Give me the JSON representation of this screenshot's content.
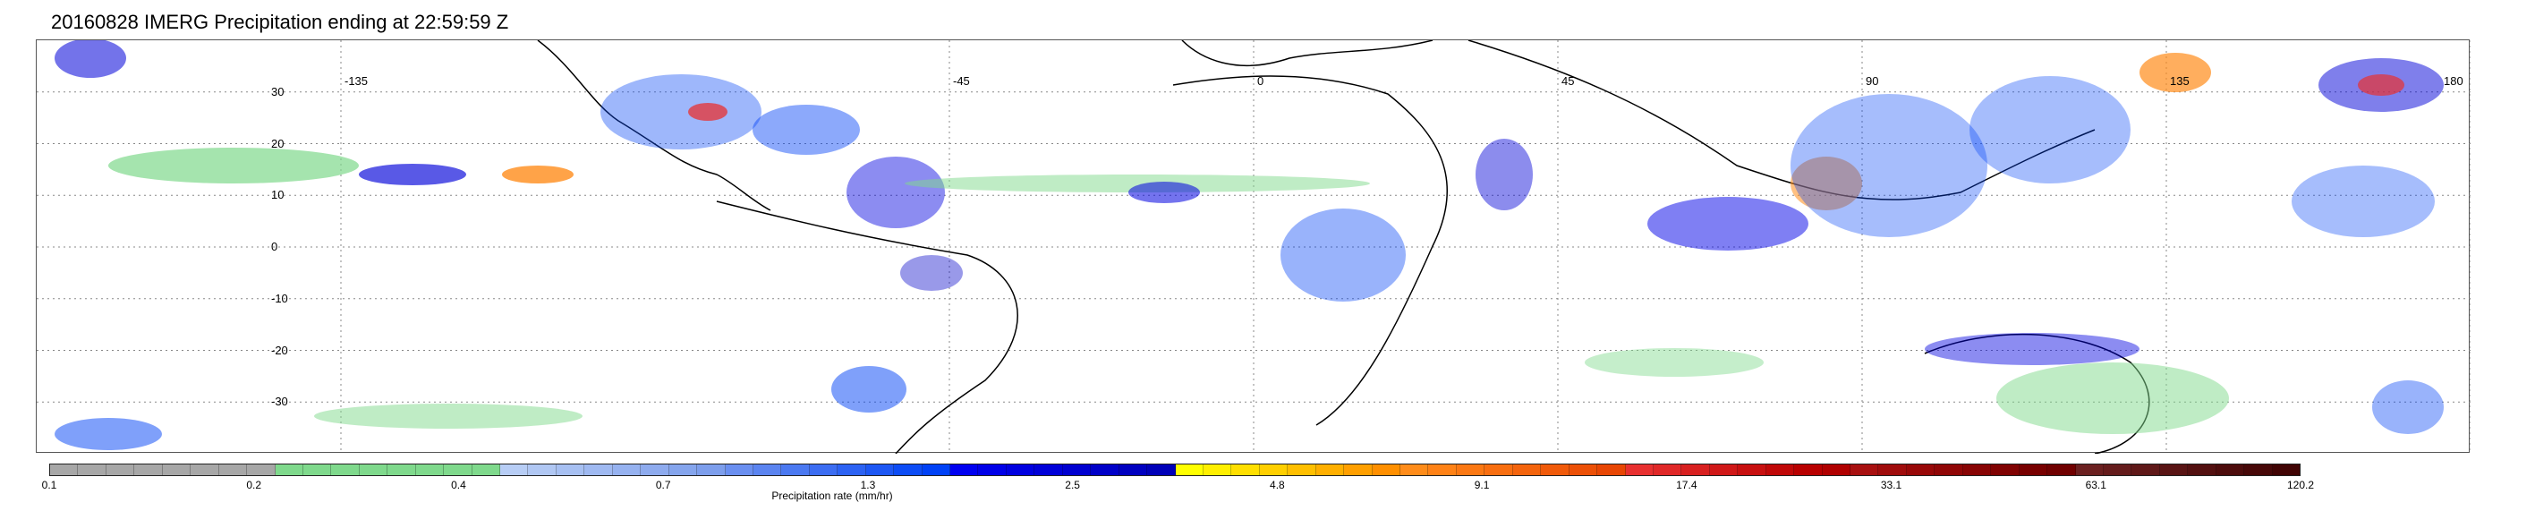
{
  "title": "20160828 IMERG Precipitation ending at 22:59:59 Z",
  "map": {
    "lon_labels": [
      "-135",
      "-45",
      "0",
      "45",
      "90",
      "135",
      "180"
    ],
    "lat_labels": [
      "30",
      "20",
      "10",
      "0",
      "-10",
      "-20",
      "-30"
    ],
    "grid": true,
    "gridline_style": "dotted"
  },
  "colorbar": {
    "label": "Precipitation rate (mm/hr)",
    "ticks": [
      "0.1",
      "0.2",
      "0.4",
      "0.7",
      "1.3",
      "2.5",
      "4.8",
      "9.1",
      "17.4",
      "33.1",
      "63.1",
      "120.2"
    ],
    "colors": [
      "#a7a7a7",
      "#a7a7a7",
      "#a7a7a7",
      "#a7a7a7",
      "#a7a7a7",
      "#a7a7a7",
      "#a7a7a7",
      "#a7a7a7",
      "#7fd98c",
      "#7fd98c",
      "#7fd98c",
      "#7fd98c",
      "#7fd98c",
      "#7fd98c",
      "#7fd98c",
      "#7fd98c",
      "#b7cdf5",
      "#b0c7f3",
      "#a7c0f2",
      "#9fb9f1",
      "#96b2f0",
      "#8eabee",
      "#85a5ed",
      "#7d9eec",
      "#6a8ff0",
      "#5b84f0",
      "#4b79f1",
      "#3c6df2",
      "#2c62f3",
      "#1d57f4",
      "#0d4cf5",
      "#0041f6",
      "#0000f0",
      "#0000e8",
      "#0000e0",
      "#0000d8",
      "#0000d0",
      "#0000c8",
      "#0000c0",
      "#0000b8",
      "#ffff00",
      "#ffef00",
      "#ffdf00",
      "#ffcf00",
      "#ffbf00",
      "#ffaf00",
      "#ff9f00",
      "#ff8f00",
      "#ff8c1a",
      "#ff8216",
      "#fb7813",
      "#f86e10",
      "#f4640d",
      "#f05a0a",
      "#ec5007",
      "#e84604",
      "#e83030",
      "#e02828",
      "#d82020",
      "#d01818",
      "#c81010",
      "#c00808",
      "#b80000",
      "#b00000",
      "#a81010",
      "#a00c0c",
      "#980808",
      "#900606",
      "#880404",
      "#800202",
      "#780000",
      "#700000",
      "#6b2020",
      "#651c1c",
      "#5f1818",
      "#591414",
      "#531010",
      "#4d0c0c",
      "#470808",
      "#410404"
    ]
  }
}
